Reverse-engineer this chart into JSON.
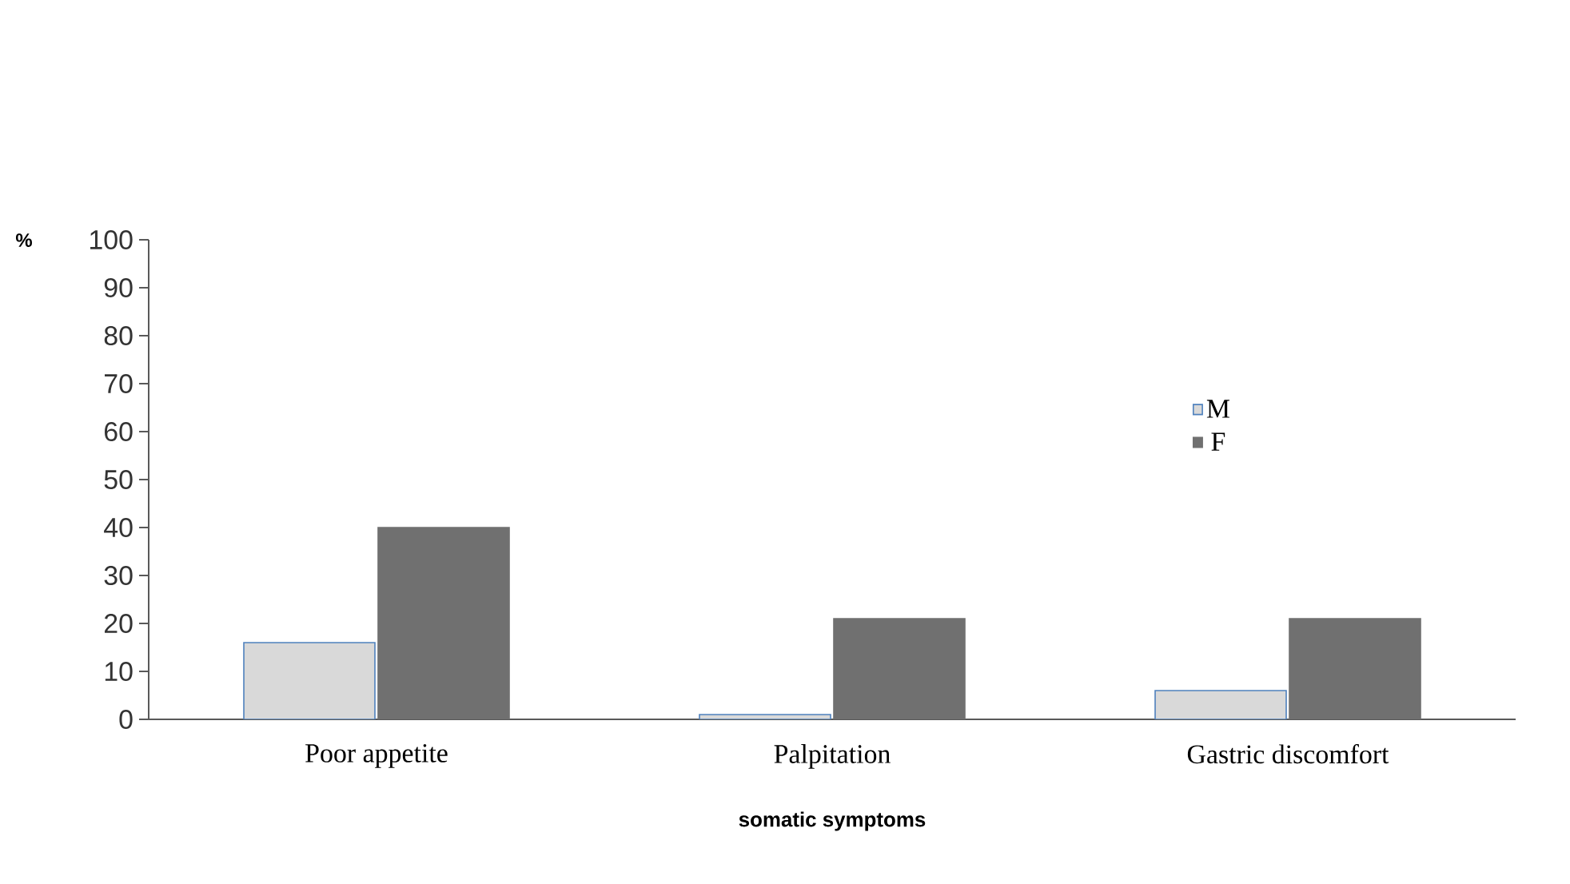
{
  "chart_data": {
    "type": "bar",
    "xlabel": "somatic symptoms",
    "ylabel": "%",
    "categories": [
      "Poor appetite",
      "Palpitation",
      "Gastric discomfort"
    ],
    "series": [
      {
        "name": "M",
        "color": "#d9d9d9",
        "values": [
          16,
          1,
          6
        ]
      },
      {
        "name": "F",
        "color": "#707070",
        "values": [
          40,
          21,
          21
        ]
      }
    ],
    "ylim": [
      0,
      100
    ],
    "yticks": [
      0,
      10,
      20,
      30,
      40,
      50,
      60,
      70,
      80,
      90,
      100
    ],
    "grid": false,
    "legend": "right"
  }
}
